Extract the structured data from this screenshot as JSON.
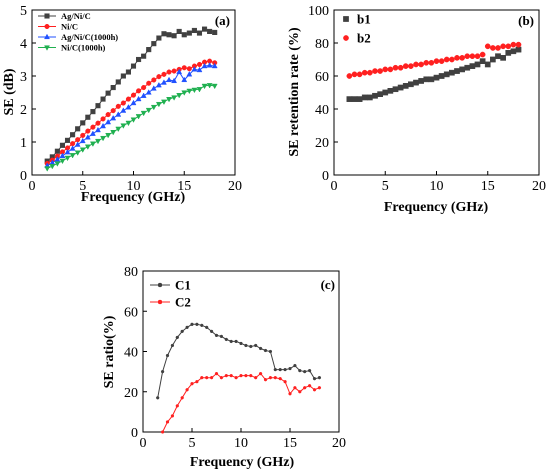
{
  "chart_data": [
    {
      "panel": "(a)",
      "type": "line",
      "xlabel": "Frequency (GHz)",
      "ylabel": "SE (dB)",
      "xlim": [
        0,
        20
      ],
      "ylim": [
        0,
        5
      ],
      "xticks": [
        0,
        5,
        10,
        15,
        20
      ],
      "yticks": [
        0,
        1,
        2,
        3,
        4,
        5
      ],
      "legend": "top-left",
      "series": [
        {
          "name": "Ag/Ni/C",
          "color": "#404040",
          "marker": "square",
          "x": [
            1.5,
            2,
            2.5,
            3,
            3.5,
            4,
            4.5,
            5,
            5.5,
            6,
            6.5,
            7,
            7.5,
            8,
            8.5,
            9,
            9.5,
            10,
            10.5,
            11,
            11.5,
            12,
            12.5,
            13,
            13.5,
            14,
            14.5,
            15,
            15.5,
            16,
            16.5,
            17,
            17.5,
            18
          ],
          "y": [
            0.42,
            0.55,
            0.72,
            0.9,
            1.05,
            1.22,
            1.4,
            1.58,
            1.75,
            1.92,
            2.1,
            2.3,
            2.48,
            2.65,
            2.82,
            3.0,
            3.12,
            3.3,
            3.5,
            3.6,
            3.8,
            3.98,
            4.15,
            4.28,
            4.25,
            4.22,
            4.35,
            4.25,
            4.3,
            4.38,
            4.3,
            4.42,
            4.35,
            4.32
          ]
        },
        {
          "name": "Ni/C",
          "color": "#ff2020",
          "marker": "circle",
          "x": [
            1.5,
            2,
            2.5,
            3,
            3.5,
            4,
            4.5,
            5,
            5.5,
            6,
            6.5,
            7,
            7.5,
            8,
            8.5,
            9,
            9.5,
            10,
            10.5,
            11,
            11.5,
            12,
            12.5,
            13,
            13.5,
            14,
            14.5,
            15,
            15.5,
            16,
            16.5,
            17,
            17.5,
            18
          ],
          "y": [
            0.35,
            0.45,
            0.57,
            0.7,
            0.82,
            0.95,
            1.07,
            1.2,
            1.33,
            1.45,
            1.57,
            1.7,
            1.83,
            1.95,
            2.08,
            2.18,
            2.3,
            2.42,
            2.55,
            2.65,
            2.78,
            2.88,
            2.98,
            3.05,
            3.12,
            3.15,
            3.2,
            3.25,
            3.22,
            3.3,
            3.35,
            3.42,
            3.45,
            3.4
          ]
        },
        {
          "name": "Ag/Ni/C(1000h)",
          "color": "#2050ff",
          "marker": "triangle-up",
          "x": [
            1.5,
            2,
            2.5,
            3,
            3.5,
            4,
            4.5,
            5,
            5.5,
            6,
            6.5,
            7,
            7.5,
            8,
            8.5,
            9,
            9.5,
            10,
            10.5,
            11,
            11.5,
            12,
            12.5,
            13,
            13.5,
            14,
            14.5,
            15,
            15.5,
            16,
            16.5,
            17,
            17.5,
            18
          ],
          "y": [
            0.28,
            0.37,
            0.47,
            0.58,
            0.69,
            0.8,
            0.92,
            1.03,
            1.14,
            1.25,
            1.36,
            1.48,
            1.6,
            1.72,
            1.83,
            1.95,
            2.05,
            2.18,
            2.3,
            2.4,
            2.5,
            2.62,
            2.72,
            2.8,
            2.88,
            2.85,
            3.12,
            2.88,
            3.05,
            3.2,
            3.18,
            3.3,
            3.32,
            3.3
          ]
        },
        {
          "name": "Ni/C(1000h)",
          "color": "#20b050",
          "marker": "triangle-down",
          "x": [
            1.5,
            2,
            2.5,
            3,
            3.5,
            4,
            4.5,
            5,
            5.5,
            6,
            6.5,
            7,
            7.5,
            8,
            8.5,
            9,
            9.5,
            10,
            10.5,
            11,
            11.5,
            12,
            12.5,
            13,
            13.5,
            14,
            14.5,
            15,
            15.5,
            16,
            16.5,
            17,
            17.5,
            18
          ],
          "y": [
            0.2,
            0.27,
            0.35,
            0.43,
            0.52,
            0.6,
            0.68,
            0.77,
            0.86,
            0.95,
            1.03,
            1.12,
            1.21,
            1.3,
            1.4,
            1.5,
            1.58,
            1.68,
            1.78,
            1.88,
            1.97,
            2.06,
            2.15,
            2.22,
            2.3,
            2.35,
            2.42,
            2.5,
            2.55,
            2.58,
            2.6,
            2.7,
            2.72,
            2.7
          ]
        }
      ]
    },
    {
      "panel": "(b)",
      "type": "scatter",
      "xlabel": "Frequency (GHz)",
      "ylabel": "SE retention rate (%)",
      "xlim": [
        0,
        20
      ],
      "ylim": [
        0,
        100
      ],
      "xticks": [
        0,
        5,
        10,
        15,
        20
      ],
      "yticks": [
        0,
        20,
        40,
        60,
        80,
        100
      ],
      "legend": "top-left",
      "series": [
        {
          "name": "b1",
          "color": "#404040",
          "marker": "square",
          "x": [
            1.5,
            2,
            2.5,
            3,
            3.5,
            4,
            4.5,
            5,
            5.5,
            6,
            6.5,
            7,
            7.5,
            8,
            8.5,
            9,
            9.5,
            10,
            10.5,
            11,
            11.5,
            12,
            12.5,
            13,
            13.5,
            14,
            14.5,
            15,
            15.5,
            16,
            16.5,
            17,
            17.5,
            18
          ],
          "y": [
            46,
            46,
            46,
            47,
            47,
            48,
            49,
            50,
            51,
            52,
            53,
            54,
            55,
            56,
            57,
            58,
            58,
            59,
            60,
            61,
            62,
            63,
            64,
            65,
            66,
            67,
            69,
            67,
            70,
            72,
            71,
            74,
            75,
            76
          ]
        },
        {
          "name": "b2",
          "color": "#ff2020",
          "marker": "circle",
          "x": [
            1.5,
            2,
            2.5,
            3,
            3.5,
            4,
            4.5,
            5,
            5.5,
            6,
            6.5,
            7,
            7.5,
            8,
            8.5,
            9,
            9.5,
            10,
            10.5,
            11,
            11.5,
            12,
            12.5,
            13,
            13.5,
            14,
            14.5,
            15,
            15.5,
            16,
            16.5,
            17,
            17.5,
            18
          ],
          "y": [
            60,
            61,
            61,
            62,
            62,
            63,
            63,
            64,
            64,
            65,
            65,
            66,
            66,
            67,
            67,
            68,
            68,
            69,
            69,
            70,
            70,
            71,
            71,
            72,
            72,
            72,
            73,
            78,
            77,
            77,
            78,
            78,
            79,
            79
          ]
        }
      ]
    },
    {
      "panel": "(c)",
      "type": "line",
      "xlabel": "Frequency (GHz)",
      "ylabel": "SE ratio(%)",
      "xlim": [
        0,
        20
      ],
      "ylim": [
        0,
        80
      ],
      "xticks": [
        0,
        5,
        10,
        15,
        20
      ],
      "yticks": [
        0,
        20,
        40,
        60,
        80
      ],
      "legend": "top-left",
      "series": [
        {
          "name": "C1",
          "color": "#404040",
          "marker": "small",
          "x": [
            1.5,
            2,
            2.5,
            3,
            3.5,
            4,
            4.5,
            5,
            5.5,
            6,
            6.5,
            7,
            7.5,
            8,
            8.5,
            9,
            9.5,
            10,
            10.5,
            11,
            11.5,
            12,
            12.5,
            13,
            13.5,
            14,
            14.5,
            15,
            15.5,
            16,
            16.5,
            17,
            17.5,
            18
          ],
          "y": [
            17,
            30,
            38,
            43,
            47,
            50,
            52,
            53.5,
            53.5,
            53,
            52,
            50,
            48,
            47.5,
            46,
            45,
            45,
            44,
            43,
            42.5,
            43,
            41.5,
            40.5,
            40,
            31,
            31,
            31,
            31.5,
            33,
            30.5,
            30,
            30.5,
            26.5,
            27
          ]
        },
        {
          "name": "C2",
          "color": "#ff2020",
          "marker": "small",
          "x": [
            2,
            2.5,
            3,
            3.5,
            4,
            4.5,
            5,
            5.5,
            6,
            6.5,
            7,
            7.5,
            8,
            8.5,
            9,
            9.5,
            10,
            10.5,
            11,
            11.5,
            12,
            12.5,
            13,
            13.5,
            14,
            14.5,
            15,
            15.5,
            16,
            16.5,
            17,
            17.5,
            18
          ],
          "y": [
            0,
            5,
            8,
            13,
            17,
            21,
            24,
            25,
            27,
            27,
            27,
            29,
            27,
            28,
            28,
            27,
            28,
            28,
            28,
            27,
            29,
            26,
            27,
            27,
            26.5,
            25,
            19,
            22,
            20,
            22,
            23,
            21,
            22
          ]
        }
      ]
    }
  ]
}
